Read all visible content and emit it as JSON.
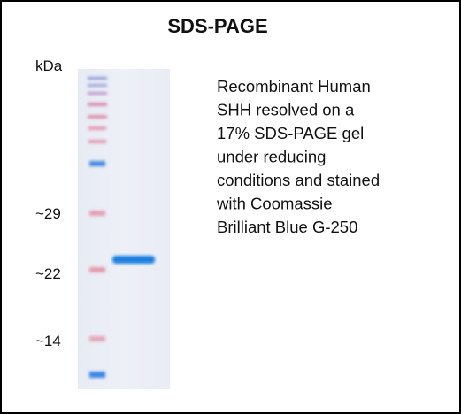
{
  "title": "SDS-PAGE",
  "axis_label": "kDa",
  "markers": [
    {
      "label": "~29"
    },
    {
      "label": "~22"
    },
    {
      "label": "~14"
    }
  ],
  "description": [
    "Recombinant Human",
    "SHH resolved on a",
    "17% SDS-PAGE gel",
    "under reducing",
    "conditions and stained",
    "with Coomassie",
    "Brilliant Blue G-250"
  ]
}
